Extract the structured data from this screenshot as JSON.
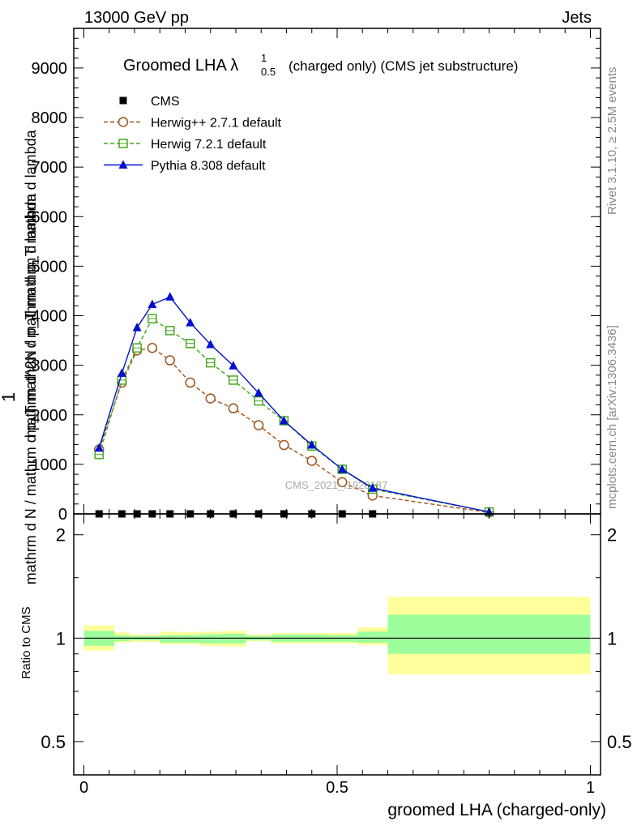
{
  "header": {
    "left": "13000 GeV pp",
    "right": "Jets"
  },
  "side_labels": {
    "rivet": "Rivet 3.1.10, ≥ 2.5M events",
    "mcplots": "mcplots.cern.ch [arXiv:1306.3436]"
  },
  "watermark": "CMS_2021_I1920187",
  "chart_data": [
    {
      "type": "line",
      "title_main": "Groomed LHA λ",
      "title_sup": "1",
      "title_sub": "0.5",
      "title_rest": "(charged only) (CMS jet substructure)",
      "ylabel_num": "1",
      "ylabel_den": "mathrm d N / mathrm d p_T mathrm d p_T mathrm d lambda",
      "ylabel_main": "mathrm d^2N / mathrm d p_T mathrm d lambda",
      "ylim": [
        0,
        9800
      ],
      "yticks": [
        0,
        1000,
        2000,
        3000,
        4000,
        5000,
        6000,
        7000,
        8000,
        9000
      ],
      "ytick_labels": [
        "0",
        "1000",
        "2000",
        "3000",
        "4000",
        "5000",
        "6000",
        "7000",
        "8000",
        "9000"
      ],
      "xlim": [
        -0.02,
        1.02
      ],
      "legend_position": "top-left",
      "x": [
        0.03,
        0.075,
        0.105,
        0.135,
        0.17,
        0.21,
        0.25,
        0.295,
        0.345,
        0.395,
        0.45,
        0.51,
        0.57,
        0.8
      ],
      "series": [
        {
          "name": "CMS",
          "color": "#000000",
          "marker": "square-filled",
          "values": [
            0,
            0,
            0,
            0,
            0,
            0,
            0,
            0,
            0,
            0,
            0,
            0,
            0,
            0
          ]
        },
        {
          "name": "Herwig++ 2.7.1 default",
          "color": "#a0521c",
          "marker": "circle-open",
          "dashed": true,
          "values": [
            1300,
            2650,
            3300,
            3350,
            3100,
            2650,
            2330,
            2130,
            1790,
            1390,
            1070,
            640,
            370,
            30
          ]
        },
        {
          "name": "Herwig 7.2.1 default",
          "color": "#45a81e",
          "marker": "square-open",
          "dashed": true,
          "values": [
            1200,
            2700,
            3350,
            3940,
            3700,
            3440,
            3050,
            2700,
            2280,
            1880,
            1370,
            900,
            500,
            40
          ]
        },
        {
          "name": "Pythia 8.308 default",
          "color": "#0010d0",
          "marker": "triangle-filled",
          "dashed": false,
          "values": [
            1330,
            2840,
            3760,
            4230,
            4380,
            3860,
            3420,
            2990,
            2440,
            1880,
            1390,
            900,
            520,
            40
          ]
        }
      ]
    },
    {
      "type": "area",
      "ylabel": "Ratio to CMS",
      "xlabel": "groomed LHA (charged-only)",
      "ylim": [
        0.4,
        2.3
      ],
      "log_scale_y": true,
      "yticks": [
        0.5,
        1,
        2
      ],
      "ytick_labels": [
        "0.5",
        "1",
        "2"
      ],
      "xlim": [
        -0.02,
        1.02
      ],
      "xticks": [
        0,
        0.5,
        1
      ],
      "xtick_labels": [
        "0",
        "0.5",
        "1"
      ],
      "reference_value": 1,
      "bins": [
        {
          "x0": 0.0,
          "x1": 0.06,
          "stat_lo": 0.95,
          "stat_hi": 1.05,
          "tot_lo": 0.92,
          "tot_hi": 1.09
        },
        {
          "x0": 0.06,
          "x1": 0.09,
          "stat_lo": 0.98,
          "stat_hi": 1.02,
          "tot_lo": 0.97,
          "tot_hi": 1.04
        },
        {
          "x0": 0.09,
          "x1": 0.12,
          "stat_lo": 0.985,
          "stat_hi": 1.015,
          "tot_lo": 0.975,
          "tot_hi": 1.025
        },
        {
          "x0": 0.12,
          "x1": 0.15,
          "stat_lo": 0.985,
          "stat_hi": 1.015,
          "tot_lo": 0.975,
          "tot_hi": 1.025
        },
        {
          "x0": 0.15,
          "x1": 0.19,
          "stat_lo": 0.97,
          "stat_hi": 1.02,
          "tot_lo": 0.96,
          "tot_hi": 1.045
        },
        {
          "x0": 0.19,
          "x1": 0.23,
          "stat_lo": 0.97,
          "stat_hi": 1.02,
          "tot_lo": 0.96,
          "tot_hi": 1.04
        },
        {
          "x0": 0.23,
          "x1": 0.27,
          "stat_lo": 0.965,
          "stat_hi": 1.025,
          "tot_lo": 0.95,
          "tot_hi": 1.045
        },
        {
          "x0": 0.27,
          "x1": 0.32,
          "stat_lo": 0.965,
          "stat_hi": 1.03,
          "tot_lo": 0.945,
          "tot_hi": 1.05
        },
        {
          "x0": 0.32,
          "x1": 0.37,
          "stat_lo": 0.985,
          "stat_hi": 1.015,
          "tot_lo": 0.98,
          "tot_hi": 1.025
        },
        {
          "x0": 0.37,
          "x1": 0.42,
          "stat_lo": 0.975,
          "stat_hi": 1.025,
          "tot_lo": 0.965,
          "tot_hi": 1.035
        },
        {
          "x0": 0.42,
          "x1": 0.48,
          "stat_lo": 0.975,
          "stat_hi": 1.025,
          "tot_lo": 0.965,
          "tot_hi": 1.035
        },
        {
          "x0": 0.48,
          "x1": 0.54,
          "stat_lo": 0.975,
          "stat_hi": 1.02,
          "tot_lo": 0.965,
          "tot_hi": 1.035
        },
        {
          "x0": 0.54,
          "x1": 0.6,
          "stat_lo": 0.97,
          "stat_hi": 1.045,
          "tot_lo": 0.955,
          "tot_hi": 1.075
        },
        {
          "x0": 0.6,
          "x1": 1.0,
          "stat_lo": 0.9,
          "stat_hi": 1.17,
          "tot_lo": 0.785,
          "tot_hi": 1.32
        }
      ]
    }
  ]
}
